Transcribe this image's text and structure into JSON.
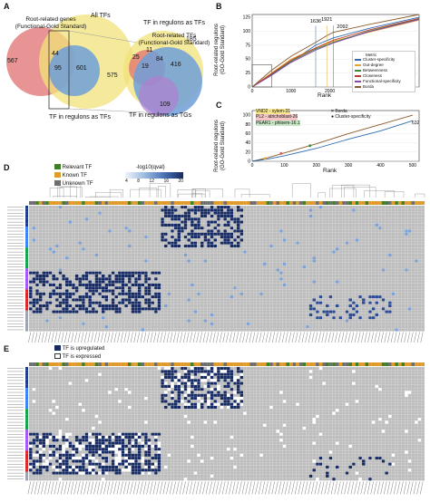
{
  "panels": {
    "A": {
      "label": "A",
      "venn1": {
        "label_left": "Root-related genes\n(Functional-Gold Standard)",
        "label_right": "All TFs",
        "label_bottom": "TF in regulons as TFs",
        "numbers": [
          "567",
          "44",
          "95",
          "601",
          "575"
        ]
      },
      "venn2": {
        "label_top_right": "TF in regulons as TFs",
        "label_top": "Root-related TFs\n(Functional-Gold Standard)",
        "label_bottom": "TF in regulons as TGs",
        "numbers": [
          "185",
          "25",
          "11",
          "84",
          "416",
          "19",
          "109"
        ]
      }
    },
    "B": {
      "label": "B",
      "ylabel": "Root-related regulons\n(GO-Gold Standard)",
      "xlabel": "Rank",
      "xticks": [
        "0",
        "1000",
        "2000",
        "3000",
        "4000"
      ],
      "yticks": [
        "0",
        "25",
        "50",
        "75",
        "100",
        "125"
      ],
      "annotations": [
        "1636",
        "1921",
        "2092"
      ],
      "legend_title": "Metric",
      "legend": [
        {
          "name": "Cluster-specificity",
          "color": "#2b6cb0"
        },
        {
          "name": "Out-degree",
          "color": "#e2a32b"
        },
        {
          "name": "Betweenness",
          "color": "#3a8a3a"
        },
        {
          "name": "Closeness",
          "color": "#c0392b"
        },
        {
          "name": "Functional-specificity",
          "color": "#8e44ad"
        },
        {
          "name": "Borda",
          "color": "#8b5a2b"
        }
      ]
    },
    "C": {
      "label": "C",
      "ylabel": "Root-related regulons\n(GO-Gold Standard)",
      "xlabel": "Rank",
      "xticks": [
        "0",
        "100",
        "200",
        "300",
        "400",
        "500"
      ],
      "yticks": [
        "0",
        "20",
        "40",
        "60",
        "80",
        "100"
      ],
      "annotations": [
        "VND2 - xylem-31",
        "PL2 - atrichoblast-26",
        "PEAR1 - phloem-16.1",
        "632"
      ],
      "legend": [
        {
          "name": "Borda",
          "marker": "×"
        },
        {
          "name": "Cluster-specificity",
          "marker": "●"
        }
      ]
    },
    "D": {
      "label": "D",
      "legend": [
        {
          "name": "Relevant TF",
          "color": "#3f7f27"
        },
        {
          "name": "Known TF",
          "color": "#e09a2a"
        },
        {
          "name": "Unknown TF",
          "color": "#6e6e6e"
        }
      ],
      "colorbar_title": "-log10(qval)",
      "colorbar_ticks": [
        "4",
        "8",
        "12",
        "16",
        "20"
      ]
    },
    "E": {
      "label": "E",
      "legend": [
        {
          "name": "TF is upregulated",
          "color": "#162a63"
        },
        {
          "name": "TF is expressed",
          "color": "#ffffff"
        }
      ]
    }
  },
  "chart_data": [
    {
      "type": "line",
      "panel": "B",
      "title": "",
      "xlabel": "Rank",
      "ylabel": "Root-related regulons (GO-Gold Standard)",
      "xlim": [
        0,
        4300
      ],
      "ylim": [
        0,
        130
      ],
      "series": [
        {
          "name": "Cluster-specificity",
          "x": [
            0,
            500,
            1000,
            1636,
            2092,
            3000,
            4300
          ],
          "y": [
            0,
            22,
            45,
            75,
            88,
            105,
            125
          ]
        },
        {
          "name": "Out-degree",
          "x": [
            0,
            500,
            1000,
            1636,
            2092,
            3000,
            4300
          ],
          "y": [
            0,
            25,
            50,
            70,
            82,
            98,
            120
          ]
        },
        {
          "name": "Betweenness",
          "x": [
            0,
            500,
            1000,
            1636,
            2092,
            3000,
            4300
          ],
          "y": [
            0,
            23,
            46,
            68,
            80,
            100,
            122
          ]
        },
        {
          "name": "Closeness",
          "x": [
            0,
            500,
            1000,
            1636,
            2092,
            3000,
            4300
          ],
          "y": [
            0,
            24,
            48,
            70,
            84,
            102,
            123
          ]
        },
        {
          "name": "Functional-specificity",
          "x": [
            0,
            500,
            1000,
            1636,
            2092,
            3000,
            4300
          ],
          "y": [
            0,
            21,
            44,
            66,
            79,
            99,
            121
          ]
        },
        {
          "name": "Borda",
          "x": [
            0,
            500,
            1000,
            1636,
            1921,
            2092,
            3000,
            4300
          ],
          "y": [
            0,
            30,
            55,
            80,
            92,
            98,
            112,
            130
          ]
        }
      ]
    },
    {
      "type": "line",
      "panel": "C",
      "title": "",
      "xlabel": "Rank",
      "ylabel": "Root-related regulons (GO-Gold Standard)",
      "xlim": [
        0,
        520
      ],
      "ylim": [
        0,
        110
      ],
      "series": [
        {
          "name": "Borda",
          "x": [
            0,
            50,
            100,
            200,
            300,
            400,
            500
          ],
          "y": [
            0,
            8,
            18,
            38,
            60,
            80,
            100
          ]
        },
        {
          "name": "Cluster-specificity",
          "x": [
            0,
            50,
            100,
            200,
            300,
            400,
            500
          ],
          "y": [
            0,
            5,
            12,
            28,
            48,
            66,
            88
          ]
        }
      ]
    }
  ]
}
